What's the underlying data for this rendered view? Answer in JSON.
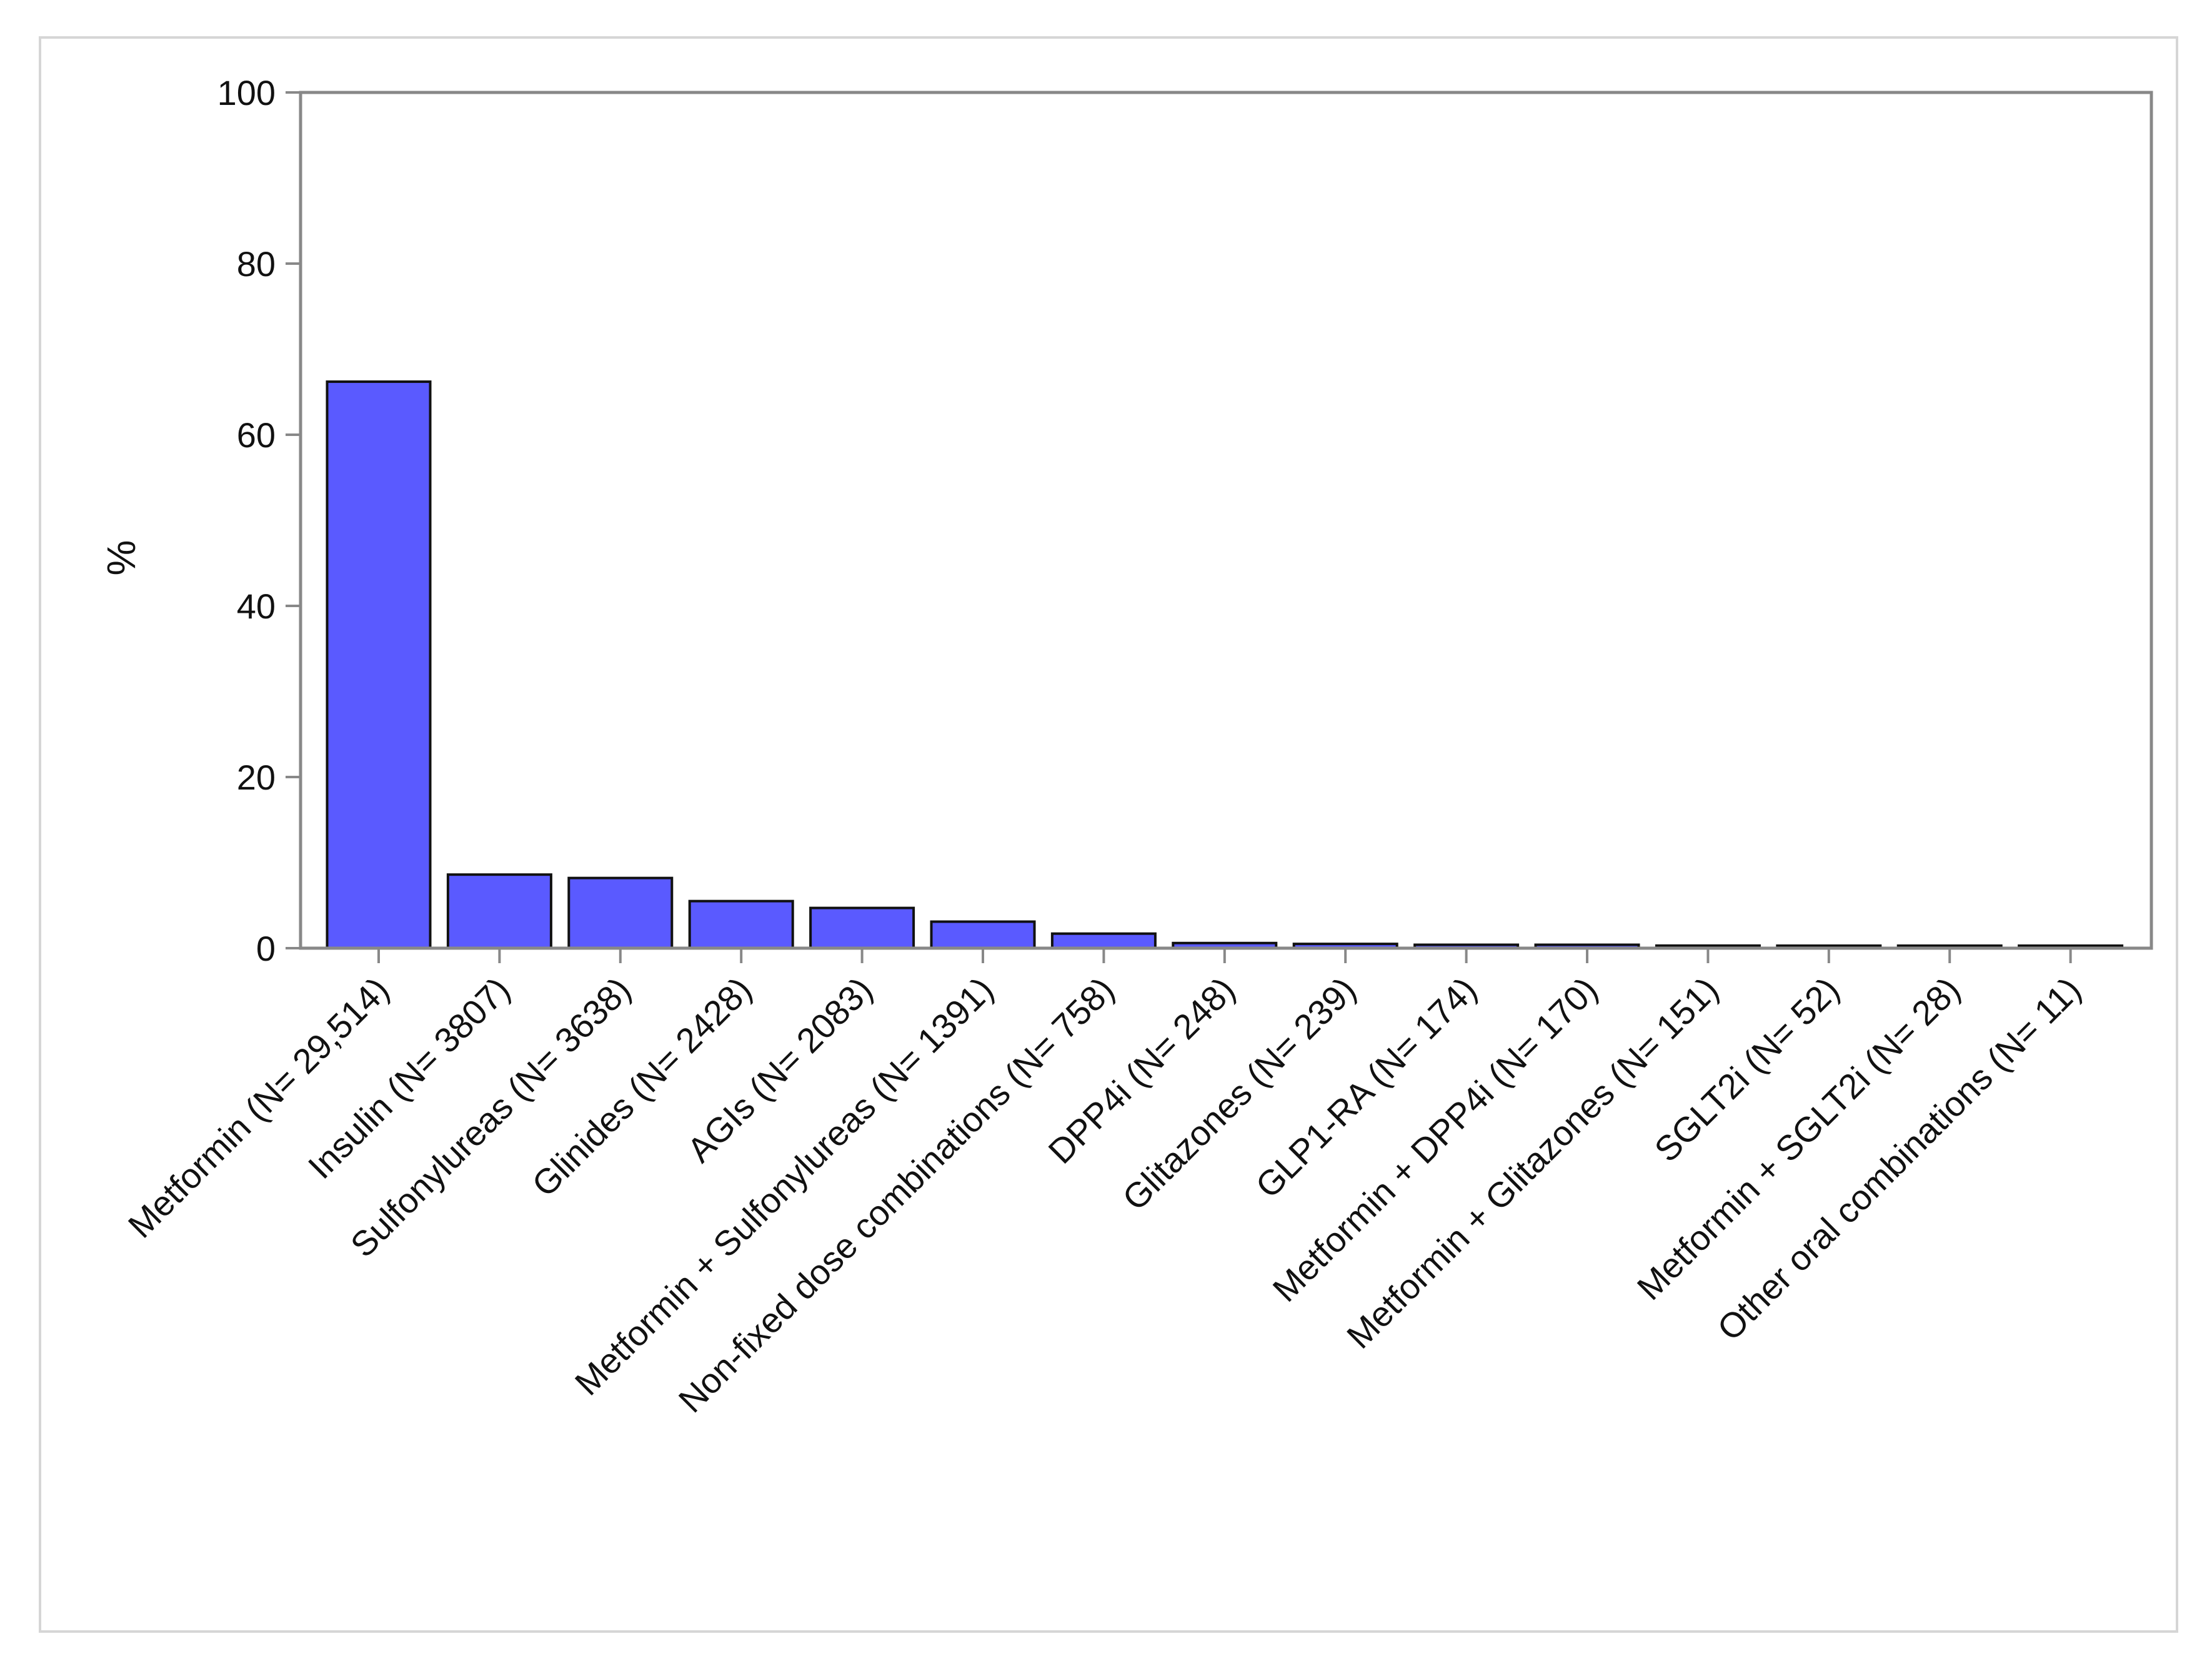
{
  "colors": {
    "bar_fill": "#5a5aff",
    "bar_stroke": "#111111",
    "axis": "#888888",
    "frame": "#d6d6d6"
  },
  "chart_data": {
    "type": "bar",
    "ylabel": "%",
    "ylim": [
      0,
      100
    ],
    "yticks": [
      0,
      20,
      40,
      60,
      80,
      100
    ],
    "grid": false,
    "categories": [
      "Metformin (N= 29,514)",
      "Insulin (N= 3807)",
      "Sulfonylureas (N= 3638)",
      "Glinides (N= 2428)",
      "AGIs (N= 2083)",
      "Metformin + Sulfonylureas (N= 1391)",
      "Non-fixed dose combinations (N= 758)",
      "DPP4i (N= 248)",
      "Glitazones (N= 239)",
      "GLP1-RA (N= 174)",
      "Metformin + DPP4i (N= 170)",
      "Metformin + Glitazones (N= 151)",
      "SGLT2i (N= 52)",
      "Metformin + SGLT2i (N= 28)",
      "Other oral combinations (N= 11)"
    ],
    "values": [
      66.2,
      8.6,
      8.2,
      5.5,
      4.7,
      3.1,
      1.7,
      0.6,
      0.5,
      0.4,
      0.4,
      0.3,
      0.1,
      0.06,
      0.02
    ]
  }
}
